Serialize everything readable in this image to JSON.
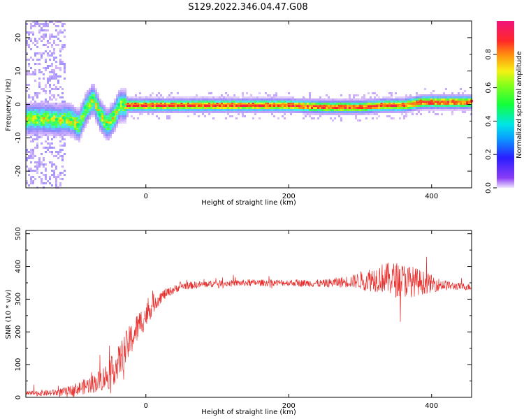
{
  "title": "S129.2022.346.04.47.G08",
  "chart_data": [
    {
      "type": "heatmap",
      "xlabel": "Height of straight line (km)",
      "ylabel": "Frequency (Hz)",
      "xlim": [
        -168,
        456
      ],
      "ylim": [
        -25,
        25
      ],
      "xticks": [
        0,
        200,
        400
      ],
      "yticks": [
        -20,
        -10,
        0,
        10,
        20
      ],
      "colorbar": {
        "label": "Normalized spectral amplitude",
        "range": [
          0,
          1
        ],
        "ticks": [
          0.0,
          0.2,
          0.4,
          0.6,
          0.8
        ],
        "tick_labels": [
          "0.0",
          "0.2",
          "0.4",
          "0.6",
          "0.8"
        ],
        "colormap": "rainbow (violet-blue-cyan-green-yellow-orange-red-magenta)"
      },
      "ridge": {
        "description": "dominant frequency trace (peak spectral amplitude)",
        "x": [
          -150,
          -135,
          -125,
          -115,
          -105,
          -95,
          -85,
          -75,
          -65,
          -55,
          -45,
          -38,
          -32,
          -25,
          -15,
          0,
          50,
          100,
          150,
          200,
          250,
          300,
          330,
          360,
          385,
          400,
          430,
          456
        ],
        "y": [
          -4,
          -4,
          -4.5,
          -4,
          -4.5,
          -6,
          -1,
          2,
          -3,
          -6,
          -3,
          0,
          0,
          0,
          0,
          0,
          0,
          0,
          0,
          0,
          -0.5,
          -0.5,
          0,
          0,
          1,
          1,
          1,
          1
        ]
      },
      "grid": false
    },
    {
      "type": "line",
      "xlabel": "Height of straight line (km)",
      "ylabel": "SNR (10 * v/v)",
      "xlim": [
        -168,
        456
      ],
      "ylim": [
        0,
        510
      ],
      "xticks": [
        0,
        200,
        400
      ],
      "yticks": [
        0,
        100,
        200,
        300,
        400,
        500
      ],
      "color": "#e8302e",
      "envelope": {
        "x": [
          -168,
          -130,
          -110,
          -90,
          -70,
          -50,
          -40,
          -30,
          -20,
          -10,
          0,
          10,
          20,
          30,
          50,
          100,
          150,
          200,
          250,
          290,
          310,
          330,
          350,
          370,
          390,
          410,
          430,
          456
        ],
        "mean": [
          12,
          14,
          18,
          30,
          45,
          70,
          100,
          140,
          180,
          220,
          250,
          285,
          305,
          320,
          340,
          348,
          350,
          350,
          348,
          355,
          360,
          365,
          360,
          355,
          350,
          345,
          340,
          337
        ],
        "noise": [
          8,
          10,
          14,
          22,
          30,
          45,
          50,
          55,
          50,
          45,
          40,
          30,
          20,
          14,
          12,
          10,
          10,
          10,
          12,
          20,
          35,
          45,
          55,
          50,
          35,
          20,
          12,
          10
        ]
      },
      "grid": false
    }
  ]
}
